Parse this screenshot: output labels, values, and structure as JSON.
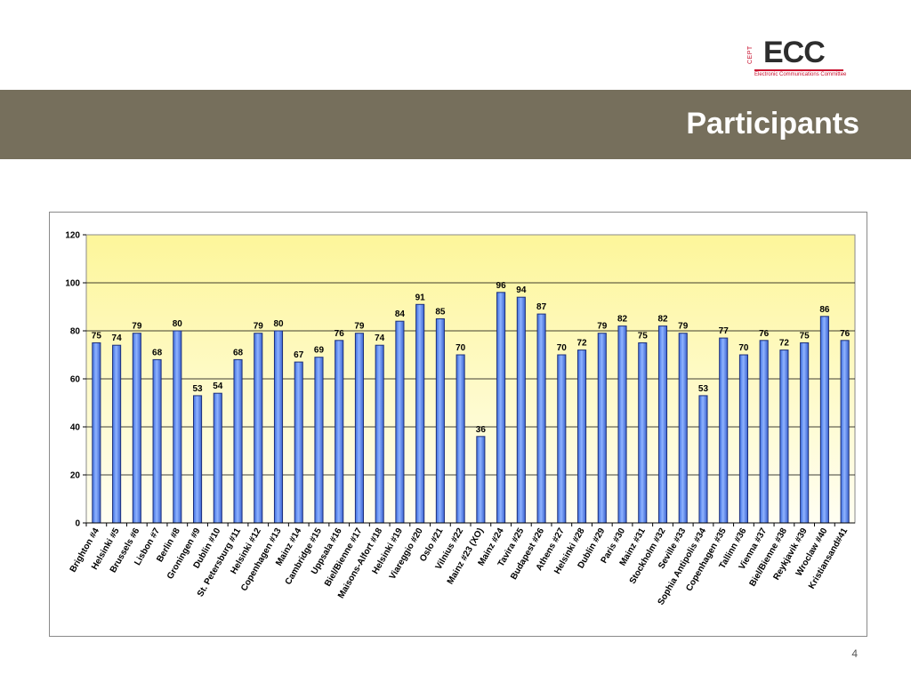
{
  "logo": {
    "cept": "CEPT",
    "ecc": "ECC",
    "subtitle": "Electronic Communications Committee"
  },
  "header": {
    "title": "Participants"
  },
  "page_number": "4",
  "colors": {
    "band": "#766f5c",
    "bar": "#5b8df5",
    "bar_edge": "#1d2f7a",
    "plot_top": "#fdf69a",
    "plot_bottom": "#fffef2"
  },
  "chart_data": {
    "type": "bar",
    "title": "",
    "xlabel": "",
    "ylabel": "",
    "ylim": [
      0,
      120
    ],
    "yticks": [
      0,
      20,
      40,
      60,
      80,
      100,
      120
    ],
    "grid": true,
    "categories": [
      "Brighton #4",
      "Helsinki #5",
      "Brussels #6",
      "Lisbon #7",
      "Berlin #8",
      "Groningen #9",
      "Dublin #10",
      "St. Petersburg #11",
      "Helsinki #12",
      "Copenhagen #13",
      "Mainz #14",
      "Cambridge #15",
      "Uppsala #16",
      "Biel/Bienne #17",
      "Maisons-Alfort #18",
      "Helsinki #19",
      "Viareggio #20",
      "Oslo #21",
      "Vilnius #22",
      "Mainz #23 (XO)",
      "Mainz #24",
      "Tavira #25",
      "Budapest #26",
      "Athens #27",
      "Helsinki #28",
      "Dublin #29",
      "Paris #30",
      "Mainz #31",
      "Stockholm #32",
      "Seville #33",
      "Sophia Antipolis #34",
      "Copenhagen #35",
      "Tallinn #36",
      "Vienna #37",
      "Biel/Bienne #38",
      "Reykjavik #39",
      "Wroclaw #40",
      "Kristiansand#41"
    ],
    "values": [
      75,
      74,
      79,
      68,
      80,
      53,
      54,
      68,
      79,
      80,
      67,
      69,
      76,
      79,
      74,
      84,
      91,
      85,
      70,
      36,
      96,
      94,
      87,
      70,
      72,
      79,
      82,
      75,
      82,
      79,
      53,
      77,
      70,
      76,
      72,
      75,
      86,
      76
    ]
  }
}
